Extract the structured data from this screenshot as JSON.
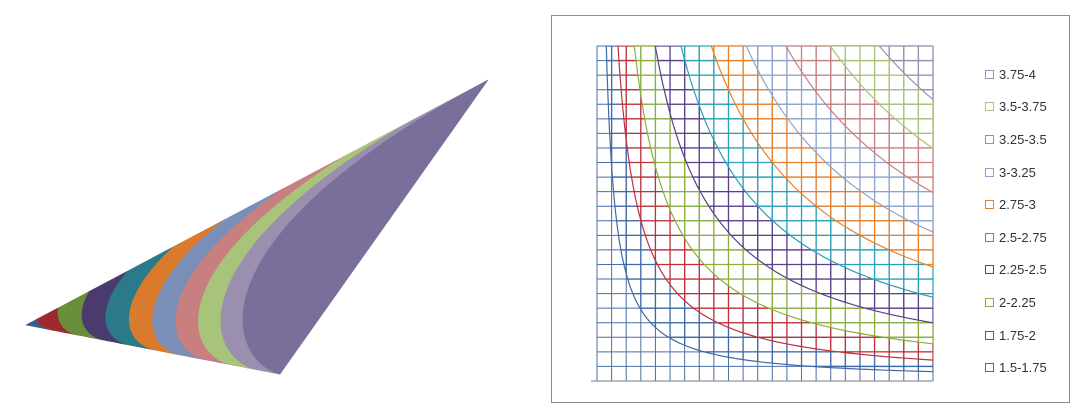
{
  "chart_data": [
    {
      "type": "surface",
      "series": [
        {
          "name": "1.5-1.75",
          "range": [
            1.5,
            1.75
          ],
          "color": "#3b5b8f"
        },
        {
          "name": "1.75-2",
          "range": [
            1.75,
            2
          ],
          "color": "#9e2a2f"
        },
        {
          "name": "2-2.25",
          "range": [
            2,
            2.25
          ],
          "color": "#6b8e3a"
        },
        {
          "name": "2.25-2.5",
          "range": [
            2.25,
            2.5
          ],
          "color": "#4a3a6e"
        },
        {
          "name": "2.5-2.75",
          "range": [
            2.5,
            2.75
          ],
          "color": "#2a7a8a"
        },
        {
          "name": "2.75-3",
          "range": [
            2.75,
            3
          ],
          "color": "#d97a2c"
        },
        {
          "name": "3-3.25",
          "range": [
            3,
            3.25
          ],
          "color": "#7a8fb8"
        },
        {
          "name": "3.25-3.5",
          "range": [
            3.25,
            3.5
          ],
          "color": "#c87f7f"
        },
        {
          "name": "3.5-3.75",
          "range": [
            3.5,
            3.75
          ],
          "color": "#a8c47a"
        },
        {
          "name": "3.75-4",
          "range": [
            3.75,
            4
          ],
          "color": "#9b8fb0"
        }
      ]
    },
    {
      "type": "contour",
      "grid": true,
      "legend_position": "right",
      "series": [
        {
          "name": "3.75-4",
          "range": [
            3.75,
            4
          ],
          "color": "#9b8fb0"
        },
        {
          "name": "3.5-3.75",
          "range": [
            3.5,
            3.75
          ],
          "color": "#a8c47a"
        },
        {
          "name": "3.25-3.5",
          "range": [
            3.25,
            3.5
          ],
          "color": "#c87f7f"
        },
        {
          "name": "3-3.25",
          "range": [
            3,
            3.25
          ],
          "color": "#8fa4cc"
        },
        {
          "name": "2.75-3",
          "range": [
            2.75,
            3
          ],
          "color": "#e8802a"
        },
        {
          "name": "2.5-2.75",
          "range": [
            2.5,
            2.75
          ],
          "color": "#2aa0b8"
        },
        {
          "name": "2.25-2.5",
          "range": [
            2.25,
            2.5
          ],
          "color": "#5a3f8a"
        },
        {
          "name": "2-2.25",
          "range": [
            2,
            2.25
          ],
          "color": "#8ab03a"
        },
        {
          "name": "1.75-2",
          "range": [
            1.75,
            2
          ],
          "color": "#c0303a"
        },
        {
          "name": "1.5-1.75",
          "range": [
            1.5,
            1.75
          ],
          "color": "#3f6aa8"
        }
      ]
    }
  ]
}
